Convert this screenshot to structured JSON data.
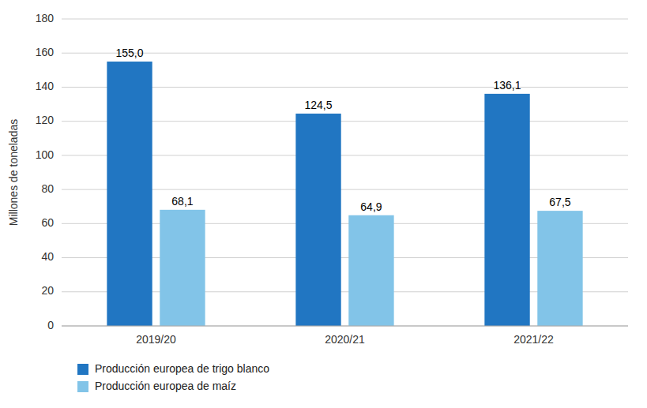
{
  "chart_data": {
    "type": "bar",
    "categories": [
      "2019/20",
      "2020/21",
      "2021/22"
    ],
    "series": [
      {
        "name": "Producción europea de trigo blanco",
        "color": "#2176C2",
        "values": [
          155.0,
          124.5,
          136.1
        ],
        "value_labels": [
          "155,0",
          "124,5",
          "136,1"
        ]
      },
      {
        "name": "Producción europea de maíz",
        "color": "#82C4E8",
        "values": [
          68.1,
          64.9,
          67.5
        ],
        "value_labels": [
          "68,1",
          "64,9",
          "67,5"
        ]
      }
    ],
    "y_label": "Millones de toneladas",
    "ylim": [
      0,
      180
    ],
    "yticks": [
      0,
      20,
      40,
      60,
      80,
      100,
      120,
      140,
      160,
      180
    ],
    "grid": true,
    "data_labels": true,
    "legend": "lower left"
  }
}
